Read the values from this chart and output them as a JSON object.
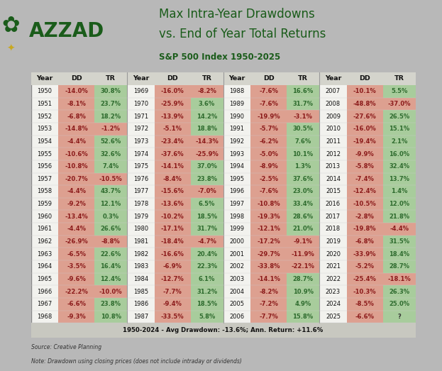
{
  "title_line1": "Max Intra-Year Drawdowns",
  "title_line2": "vs. End of Year Total Returns",
  "subtitle": "S&P 500 Index 1950-2025",
  "footer_bold": "1950-2024 - Avg Drawdown: -13.6%; Ann. Return: +11.6%",
  "source_line1": "Source: Creative Planning",
  "source_line2": "Note: Drawdown using closing prices (does not include intraday or dividends)",
  "background_color": "#b8b8b8",
  "table_bg": "#f2f2ee",
  "header_bg": "#d4d4cc",
  "footer_bg": "#c8c8c0",
  "dd_color": "#8B1A1A",
  "tr_pos_color": "#2E6B2E",
  "tr_neg_color": "#8B1A1A",
  "dd_bg": "#dda090",
  "tr_pos_bg": "#a8cc9c",
  "tr_neg_bg": "#dda090",
  "year_color": "#111111",
  "sep_color": "#999999",
  "azzad_color": "#1a5c1a",
  "data": [
    [
      1950,
      -14.0,
      30.8
    ],
    [
      1951,
      -8.1,
      23.7
    ],
    [
      1952,
      -6.8,
      18.2
    ],
    [
      1953,
      -14.8,
      -1.2
    ],
    [
      1954,
      -4.4,
      52.6
    ],
    [
      1955,
      -10.6,
      32.6
    ],
    [
      1956,
      -10.8,
      7.4
    ],
    [
      1957,
      -20.7,
      -10.5
    ],
    [
      1958,
      -4.4,
      43.7
    ],
    [
      1959,
      -9.2,
      12.1
    ],
    [
      1960,
      -13.4,
      0.3
    ],
    [
      1961,
      -4.4,
      26.6
    ],
    [
      1962,
      -26.9,
      -8.8
    ],
    [
      1963,
      -6.5,
      22.6
    ],
    [
      1964,
      -3.5,
      16.4
    ],
    [
      1965,
      -9.6,
      12.4
    ],
    [
      1966,
      -22.2,
      -10.0
    ],
    [
      1967,
      -6.6,
      23.8
    ],
    [
      1968,
      -9.3,
      10.8
    ],
    [
      1969,
      -16.0,
      -8.2
    ],
    [
      1970,
      -25.9,
      3.6
    ],
    [
      1971,
      -13.9,
      14.2
    ],
    [
      1972,
      -5.1,
      18.8
    ],
    [
      1973,
      -23.4,
      -14.3
    ],
    [
      1974,
      -37.6,
      -25.9
    ],
    [
      1975,
      -14.1,
      37.0
    ],
    [
      1976,
      -8.4,
      23.8
    ],
    [
      1977,
      -15.6,
      -7.0
    ],
    [
      1978,
      -13.6,
      6.5
    ],
    [
      1979,
      -10.2,
      18.5
    ],
    [
      1980,
      -17.1,
      31.7
    ],
    [
      1981,
      -18.4,
      -4.7
    ],
    [
      1982,
      -16.6,
      20.4
    ],
    [
      1983,
      -6.9,
      22.3
    ],
    [
      1984,
      -12.7,
      6.1
    ],
    [
      1985,
      -7.7,
      31.2
    ],
    [
      1986,
      -9.4,
      18.5
    ],
    [
      1987,
      -33.5,
      5.8
    ],
    [
      1988,
      -7.6,
      16.6
    ],
    [
      1989,
      -7.6,
      31.7
    ],
    [
      1990,
      -19.9,
      -3.1
    ],
    [
      1991,
      -5.7,
      30.5
    ],
    [
      1992,
      -6.2,
      7.6
    ],
    [
      1993,
      -5.0,
      10.1
    ],
    [
      1994,
      -8.9,
      1.3
    ],
    [
      1995,
      -2.5,
      37.6
    ],
    [
      1996,
      -7.6,
      23.0
    ],
    [
      1997,
      -10.8,
      33.4
    ],
    [
      1998,
      -19.3,
      28.6
    ],
    [
      1999,
      -12.1,
      21.0
    ],
    [
      2000,
      -17.2,
      -9.1
    ],
    [
      2001,
      -29.7,
      -11.9
    ],
    [
      2002,
      -33.8,
      -22.1
    ],
    [
      2003,
      -14.1,
      28.7
    ],
    [
      2004,
      -8.2,
      10.9
    ],
    [
      2005,
      -7.2,
      4.9
    ],
    [
      2006,
      -7.7,
      15.8
    ],
    [
      2007,
      -10.1,
      5.5
    ],
    [
      2008,
      -48.8,
      -37.0
    ],
    [
      2009,
      -27.6,
      26.5
    ],
    [
      2010,
      -16.0,
      15.1
    ],
    [
      2011,
      -19.4,
      2.1
    ],
    [
      2012,
      -9.9,
      16.0
    ],
    [
      2013,
      -5.8,
      32.4
    ],
    [
      2014,
      -7.4,
      13.7
    ],
    [
      2015,
      -12.4,
      1.4
    ],
    [
      2016,
      -10.5,
      12.0
    ],
    [
      2017,
      -2.8,
      21.8
    ],
    [
      2018,
      -19.8,
      -4.4
    ],
    [
      2019,
      -6.8,
      31.5
    ],
    [
      2020,
      -33.9,
      18.4
    ],
    [
      2021,
      -5.2,
      28.7
    ],
    [
      2022,
      -25.4,
      -18.1
    ],
    [
      2023,
      -10.3,
      26.3
    ],
    [
      2024,
      -8.5,
      25.0
    ],
    [
      2025,
      -6.6,
      null
    ]
  ]
}
